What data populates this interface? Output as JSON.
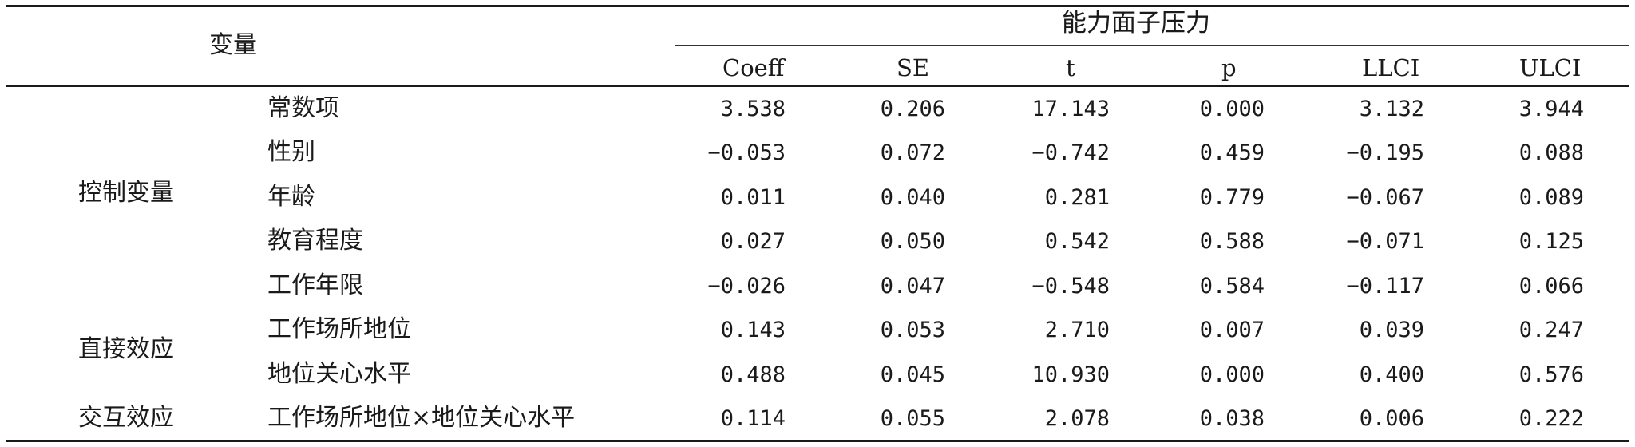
{
  "header": {
    "variable_label": "变量",
    "group_label": "能力面子压力",
    "columns": [
      "Coeff",
      "SE",
      "t",
      "p",
      "LLCI",
      "ULCI"
    ]
  },
  "groups": [
    {
      "label": "控制变量"
    },
    {
      "label": "直接效应"
    },
    {
      "label": "交互效应"
    }
  ],
  "rows": [
    {
      "name": "常数项",
      "values": [
        "3.538",
        "0.206",
        "17.143",
        "0.000",
        "3.132",
        "3.944"
      ]
    },
    {
      "name": "性别",
      "values": [
        "−0.053",
        "0.072",
        "−0.742",
        "0.459",
        "−0.195",
        "0.088"
      ]
    },
    {
      "name": "年龄",
      "values": [
        "0.011",
        "0.040",
        "0.281",
        "0.779",
        "−0.067",
        "0.089"
      ]
    },
    {
      "name": "教育程度",
      "values": [
        "0.027",
        "0.050",
        "0.542",
        "0.588",
        "−0.071",
        "0.125"
      ]
    },
    {
      "name": "工作年限",
      "values": [
        "−0.026",
        "0.047",
        "−0.548",
        "0.584",
        "−0.117",
        "0.066"
      ]
    },
    {
      "name": "工作场所地位",
      "values": [
        "0.143",
        "0.053",
        "2.710",
        "0.007",
        "0.039",
        "0.247"
      ]
    },
    {
      "name": "地位关心水平",
      "values": [
        "0.488",
        "0.045",
        "10.930",
        "0.000",
        "0.400",
        "0.576"
      ]
    },
    {
      "name": "工作场所地位×地位关心水平",
      "values": [
        "0.114",
        "0.055",
        "2.078",
        "0.038",
        "0.006",
        "0.222"
      ]
    }
  ]
}
